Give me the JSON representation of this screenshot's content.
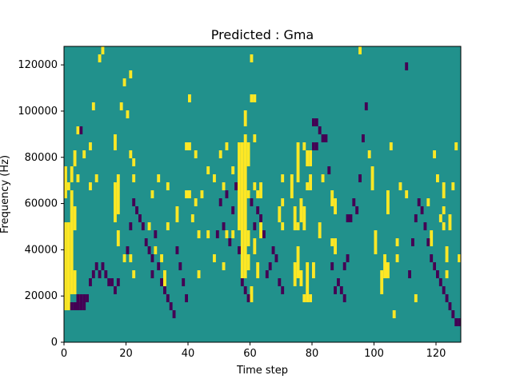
{
  "chart_data": {
    "type": "heatmap",
    "title": "Predicted : Gma",
    "xlabel": "Time step",
    "ylabel": "Frequency (Hz)",
    "xlim": [
      0,
      128
    ],
    "ylim": [
      0,
      128000
    ],
    "x_ticks": [
      0,
      20,
      40,
      60,
      80,
      100,
      120
    ],
    "y_ticks": [
      0,
      20000,
      40000,
      60000,
      80000,
      100000,
      120000
    ],
    "y_tick_labels": [
      "0",
      "20000",
      "40000",
      "60000",
      "80000",
      "100000",
      "120000"
    ],
    "grid": false,
    "legend": "none",
    "colors": {
      "background": "#21918c",
      "high": "#fde725",
      "low": "#440154"
    },
    "high_cells": [
      [
        0,
        4
      ],
      [
        0,
        5
      ],
      [
        0,
        6
      ],
      [
        0,
        7
      ],
      [
        0,
        8
      ],
      [
        0,
        9
      ],
      [
        0,
        10
      ],
      [
        0,
        11
      ],
      [
        0,
        12
      ],
      [
        0,
        13
      ],
      [
        0,
        14
      ],
      [
        0,
        18
      ],
      [
        0,
        19
      ],
      [
        0,
        20
      ],
      [
        0,
        21
      ],
      [
        1,
        4
      ],
      [
        1,
        5
      ],
      [
        1,
        6
      ],
      [
        1,
        7
      ],
      [
        1,
        8
      ],
      [
        1,
        9
      ],
      [
        1,
        10
      ],
      [
        1,
        11
      ],
      [
        1,
        12
      ],
      [
        1,
        13
      ],
      [
        1,
        14
      ],
      [
        1,
        19
      ],
      [
        2,
        6
      ],
      [
        2,
        7
      ],
      [
        2,
        8
      ],
      [
        2,
        9
      ],
      [
        2,
        10
      ],
      [
        2,
        11
      ],
      [
        2,
        12
      ],
      [
        2,
        13
      ],
      [
        2,
        14
      ],
      [
        2,
        15
      ],
      [
        2,
        16
      ],
      [
        2,
        17
      ],
      [
        2,
        18
      ],
      [
        2,
        20
      ],
      [
        2,
        21
      ],
      [
        3,
        6
      ],
      [
        3,
        7
      ],
      [
        3,
        8
      ],
      [
        3,
        14
      ],
      [
        3,
        15
      ],
      [
        3,
        16
      ],
      [
        3,
        22
      ],
      [
        3,
        23
      ],
      [
        4,
        5
      ],
      [
        4,
        20
      ],
      [
        4,
        26
      ],
      [
        6,
        23
      ],
      [
        7,
        42
      ],
      [
        8,
        19
      ],
      [
        8,
        24
      ],
      [
        9,
        29
      ],
      [
        10,
        20
      ],
      [
        11,
        35
      ],
      [
        11,
        40
      ],
      [
        12,
        36
      ],
      [
        16,
        15
      ],
      [
        16,
        16
      ],
      [
        16,
        17
      ],
      [
        16,
        18
      ],
      [
        16,
        19
      ],
      [
        16,
        24
      ],
      [
        16,
        25
      ],
      [
        17,
        12
      ],
      [
        17,
        13
      ],
      [
        17,
        16
      ],
      [
        17,
        17
      ],
      [
        17,
        18
      ],
      [
        17,
        19
      ],
      [
        17,
        20
      ],
      [
        18,
        29
      ],
      [
        19,
        10
      ],
      [
        19,
        32
      ],
      [
        20,
        28
      ],
      [
        21,
        10
      ],
      [
        21,
        23
      ],
      [
        21,
        33
      ],
      [
        22,
        8
      ],
      [
        22,
        20
      ],
      [
        22,
        22
      ],
      [
        27,
        14
      ],
      [
        28,
        18
      ],
      [
        29,
        11
      ],
      [
        30,
        20
      ],
      [
        31,
        10
      ],
      [
        32,
        7
      ],
      [
        32,
        8
      ],
      [
        33,
        14
      ],
      [
        33,
        19
      ],
      [
        36,
        15
      ],
      [
        36,
        16
      ],
      [
        39,
        18
      ],
      [
        39,
        24
      ],
      [
        40,
        18
      ],
      [
        40,
        24
      ],
      [
        40,
        30
      ],
      [
        40,
        37
      ],
      [
        41,
        15
      ],
      [
        42,
        17
      ],
      [
        42,
        23
      ],
      [
        43,
        8
      ],
      [
        43,
        13
      ],
      [
        44,
        18
      ],
      [
        46,
        13
      ],
      [
        46,
        21
      ],
      [
        48,
        10
      ],
      [
        48,
        20
      ],
      [
        50,
        23
      ],
      [
        51,
        9
      ],
      [
        51,
        19
      ],
      [
        52,
        13
      ],
      [
        52,
        24
      ],
      [
        54,
        13
      ],
      [
        54,
        21
      ],
      [
        56,
        14
      ],
      [
        56,
        15
      ],
      [
        56,
        16
      ],
      [
        56,
        17
      ],
      [
        56,
        18
      ],
      [
        56,
        19
      ],
      [
        56,
        20
      ],
      [
        56,
        21
      ],
      [
        56,
        22
      ],
      [
        56,
        23
      ],
      [
        56,
        24
      ],
      [
        57,
        8
      ],
      [
        57,
        9
      ],
      [
        57,
        10
      ],
      [
        57,
        11
      ],
      [
        57,
        12
      ],
      [
        57,
        13
      ],
      [
        57,
        14
      ],
      [
        57,
        15
      ],
      [
        57,
        16
      ],
      [
        57,
        17
      ],
      [
        57,
        18
      ],
      [
        57,
        19
      ],
      [
        57,
        20
      ],
      [
        57,
        21
      ],
      [
        57,
        22
      ],
      [
        57,
        23
      ],
      [
        57,
        24
      ],
      [
        58,
        8
      ],
      [
        58,
        9
      ],
      [
        58,
        10
      ],
      [
        58,
        11
      ],
      [
        58,
        12
      ],
      [
        58,
        13
      ],
      [
        58,
        14
      ],
      [
        58,
        15
      ],
      [
        58,
        16
      ],
      [
        58,
        17
      ],
      [
        58,
        18
      ],
      [
        58,
        19
      ],
      [
        58,
        20
      ],
      [
        58,
        21
      ],
      [
        58,
        22
      ],
      [
        58,
        23
      ],
      [
        58,
        24
      ],
      [
        58,
        25
      ],
      [
        58,
        27
      ],
      [
        58,
        28
      ],
      [
        59,
        9
      ],
      [
        59,
        10
      ],
      [
        59,
        12
      ],
      [
        59,
        13
      ],
      [
        59,
        18
      ],
      [
        59,
        22
      ],
      [
        59,
        23
      ],
      [
        59,
        24
      ],
      [
        60,
        5
      ],
      [
        60,
        6
      ],
      [
        60,
        30
      ],
      [
        60,
        35
      ],
      [
        61,
        11
      ],
      [
        61,
        12
      ],
      [
        61,
        19
      ],
      [
        61,
        25
      ],
      [
        61,
        30
      ],
      [
        62,
        8
      ],
      [
        62,
        9
      ],
      [
        62,
        18
      ],
      [
        63,
        13
      ],
      [
        63,
        14
      ],
      [
        63,
        18
      ],
      [
        63,
        19
      ],
      [
        69,
        15
      ],
      [
        69,
        16
      ],
      [
        70,
        14
      ],
      [
        70,
        17
      ],
      [
        70,
        20
      ],
      [
        73,
        18
      ],
      [
        73,
        19
      ],
      [
        73,
        20
      ],
      [
        74,
        7
      ],
      [
        74,
        8
      ],
      [
        74,
        9
      ],
      [
        74,
        14
      ],
      [
        74,
        15
      ],
      [
        74,
        16
      ],
      [
        75,
        8
      ],
      [
        75,
        9
      ],
      [
        75,
        10
      ],
      [
        75,
        11
      ],
      [
        75,
        14
      ],
      [
        75,
        20
      ],
      [
        75,
        21
      ],
      [
        75,
        22
      ],
      [
        75,
        23
      ],
      [
        75,
        24
      ],
      [
        76,
        7
      ],
      [
        76,
        8
      ],
      [
        76,
        15
      ],
      [
        76,
        16
      ],
      [
        76,
        17
      ],
      [
        77,
        5
      ],
      [
        77,
        14
      ],
      [
        77,
        15
      ],
      [
        77,
        16
      ],
      [
        77,
        24
      ],
      [
        78,
        5
      ],
      [
        78,
        6
      ],
      [
        78,
        7
      ],
      [
        78,
        8
      ],
      [
        78,
        9
      ],
      [
        78,
        19
      ],
      [
        78,
        22
      ],
      [
        78,
        23
      ],
      [
        79,
        5
      ],
      [
        79,
        19
      ],
      [
        79,
        20
      ],
      [
        79,
        22
      ],
      [
        79,
        23
      ],
      [
        80,
        8
      ],
      [
        80,
        9
      ],
      [
        82,
        13
      ],
      [
        82,
        14
      ],
      [
        83,
        20
      ],
      [
        86,
        12
      ],
      [
        86,
        17
      ],
      [
        86,
        18
      ],
      [
        87,
        11
      ],
      [
        87,
        12
      ],
      [
        87,
        16
      ],
      [
        87,
        17
      ],
      [
        95,
        36
      ],
      [
        98,
        23
      ],
      [
        99,
        19
      ],
      [
        99,
        20
      ],
      [
        99,
        21
      ],
      [
        100,
        11
      ],
      [
        100,
        12
      ],
      [
        100,
        13
      ],
      [
        102,
        6
      ],
      [
        102,
        7
      ],
      [
        102,
        8
      ],
      [
        103,
        8
      ],
      [
        103,
        9
      ],
      [
        103,
        10
      ],
      [
        104,
        8
      ],
      [
        104,
        9
      ],
      [
        104,
        16
      ],
      [
        104,
        17
      ],
      [
        104,
        18
      ],
      [
        105,
        24
      ],
      [
        106,
        3
      ],
      [
        107,
        10
      ],
      [
        107,
        12
      ],
      [
        108,
        19
      ],
      [
        110,
        18
      ],
      [
        113,
        5
      ],
      [
        117,
        17
      ],
      [
        118,
        12
      ],
      [
        118,
        13
      ],
      [
        119,
        9
      ],
      [
        119,
        23
      ],
      [
        120,
        20
      ],
      [
        121,
        15
      ],
      [
        122,
        14
      ],
      [
        122,
        16
      ],
      [
        122,
        18
      ],
      [
        122,
        19
      ],
      [
        123,
        8
      ],
      [
        123,
        10
      ],
      [
        123,
        11
      ],
      [
        124,
        14
      ],
      [
        124,
        15
      ],
      [
        125,
        19
      ],
      [
        126,
        24
      ],
      [
        127,
        10
      ]
    ],
    "low_cells": [
      [
        2,
        4
      ],
      [
        3,
        4
      ],
      [
        4,
        4
      ],
      [
        4,
        5
      ],
      [
        5,
        4
      ],
      [
        5,
        5
      ],
      [
        5,
        26
      ],
      [
        6,
        4
      ],
      [
        6,
        5
      ],
      [
        7,
        5
      ],
      [
        8,
        7
      ],
      [
        9,
        8
      ],
      [
        10,
        9
      ],
      [
        11,
        8
      ],
      [
        12,
        9
      ],
      [
        13,
        8
      ],
      [
        14,
        7
      ],
      [
        15,
        7
      ],
      [
        16,
        6
      ],
      [
        17,
        7
      ],
      [
        20,
        11
      ],
      [
        21,
        14
      ],
      [
        22,
        17
      ],
      [
        23,
        16
      ],
      [
        24,
        15
      ],
      [
        25,
        14
      ],
      [
        26,
        12
      ],
      [
        27,
        11
      ],
      [
        28,
        10
      ],
      [
        28,
        8
      ],
      [
        29,
        13
      ],
      [
        30,
        9
      ],
      [
        31,
        7
      ],
      [
        32,
        6
      ],
      [
        33,
        5
      ],
      [
        34,
        4
      ],
      [
        35,
        3
      ],
      [
        36,
        11
      ],
      [
        37,
        9
      ],
      [
        38,
        7
      ],
      [
        39,
        5
      ],
      [
        49,
        13
      ],
      [
        50,
        17
      ],
      [
        51,
        14
      ],
      [
        52,
        18
      ],
      [
        53,
        12
      ],
      [
        54,
        16
      ],
      [
        55,
        19
      ],
      [
        56,
        11
      ],
      [
        57,
        7
      ],
      [
        58,
        6
      ],
      [
        59,
        5
      ],
      [
        60,
        17
      ],
      [
        61,
        14
      ],
      [
        62,
        16
      ],
      [
        63,
        15
      ],
      [
        64,
        13
      ],
      [
        65,
        8
      ],
      [
        66,
        9
      ],
      [
        67,
        11
      ],
      [
        68,
        10
      ],
      [
        69,
        7
      ],
      [
        70,
        6
      ],
      [
        80,
        24
      ],
      [
        80,
        27
      ],
      [
        81,
        24
      ],
      [
        81,
        27
      ],
      [
        82,
        26
      ],
      [
        83,
        25
      ],
      [
        84,
        25
      ],
      [
        85,
        21
      ],
      [
        86,
        9
      ],
      [
        87,
        6
      ],
      [
        88,
        7
      ],
      [
        89,
        6
      ],
      [
        90,
        5
      ],
      [
        90,
        9
      ],
      [
        91,
        10
      ],
      [
        91,
        15
      ],
      [
        92,
        15
      ],
      [
        93,
        17
      ],
      [
        94,
        16
      ],
      [
        95,
        20
      ],
      [
        96,
        25
      ],
      [
        97,
        29
      ],
      [
        110,
        34
      ],
      [
        111,
        8
      ],
      [
        112,
        12
      ],
      [
        113,
        15
      ],
      [
        114,
        17
      ],
      [
        115,
        16
      ],
      [
        116,
        14
      ],
      [
        117,
        12
      ],
      [
        118,
        10
      ],
      [
        119,
        9
      ],
      [
        120,
        8
      ],
      [
        121,
        7
      ],
      [
        122,
        6
      ],
      [
        123,
        5
      ],
      [
        124,
        4
      ],
      [
        125,
        3
      ],
      [
        126,
        2
      ],
      [
        127,
        2
      ]
    ]
  }
}
